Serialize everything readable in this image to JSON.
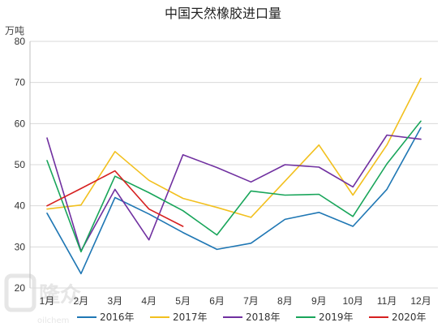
{
  "chart_data": {
    "type": "line",
    "title": "中国天然橡胶进口量",
    "unit_label": "万吨",
    "categories": [
      "1月",
      "2月",
      "3月",
      "4月",
      "5月",
      "6月",
      "7月",
      "8月",
      "9月",
      "10月",
      "11月",
      "12月"
    ],
    "y_ticks": [
      "20",
      "30",
      "40",
      "50",
      "60",
      "70",
      "80"
    ],
    "ylim": [
      20,
      80
    ],
    "grid": true,
    "legend_position": "bottom",
    "series": [
      {
        "name": "2016年",
        "color": "#1f77b4",
        "values": [
          38.2,
          23.5,
          42.0,
          38.0,
          33.5,
          29.4,
          30.9,
          36.7,
          38.4,
          35.0,
          44.0,
          59.0
        ]
      },
      {
        "name": "2017年",
        "color": "#f2c01e",
        "values": [
          39.2,
          40.2,
          53.2,
          46.2,
          41.8,
          39.6,
          37.2,
          46.0,
          54.8,
          42.6,
          54.8,
          71.0
        ]
      },
      {
        "name": "2018年",
        "color": "#7030a0",
        "values": [
          56.5,
          29.0,
          44.0,
          31.7,
          52.4,
          49.3,
          45.8,
          50.0,
          49.4,
          44.6,
          57.2,
          56.2
        ]
      },
      {
        "name": "2019年",
        "color": "#18a55a",
        "values": [
          51.0,
          28.8,
          47.2,
          43.2,
          38.8,
          32.9,
          43.6,
          42.6,
          42.8,
          37.4,
          50.2,
          60.6
        ]
      },
      {
        "name": "2020年",
        "color": "#d62020",
        "values": [
          40.0,
          44.2,
          48.5,
          39.2,
          35.0,
          null,
          null,
          null,
          null,
          null,
          null,
          null
        ]
      }
    ]
  },
  "watermark": {
    "brand": "隆众",
    "sub": "oilchem"
  }
}
